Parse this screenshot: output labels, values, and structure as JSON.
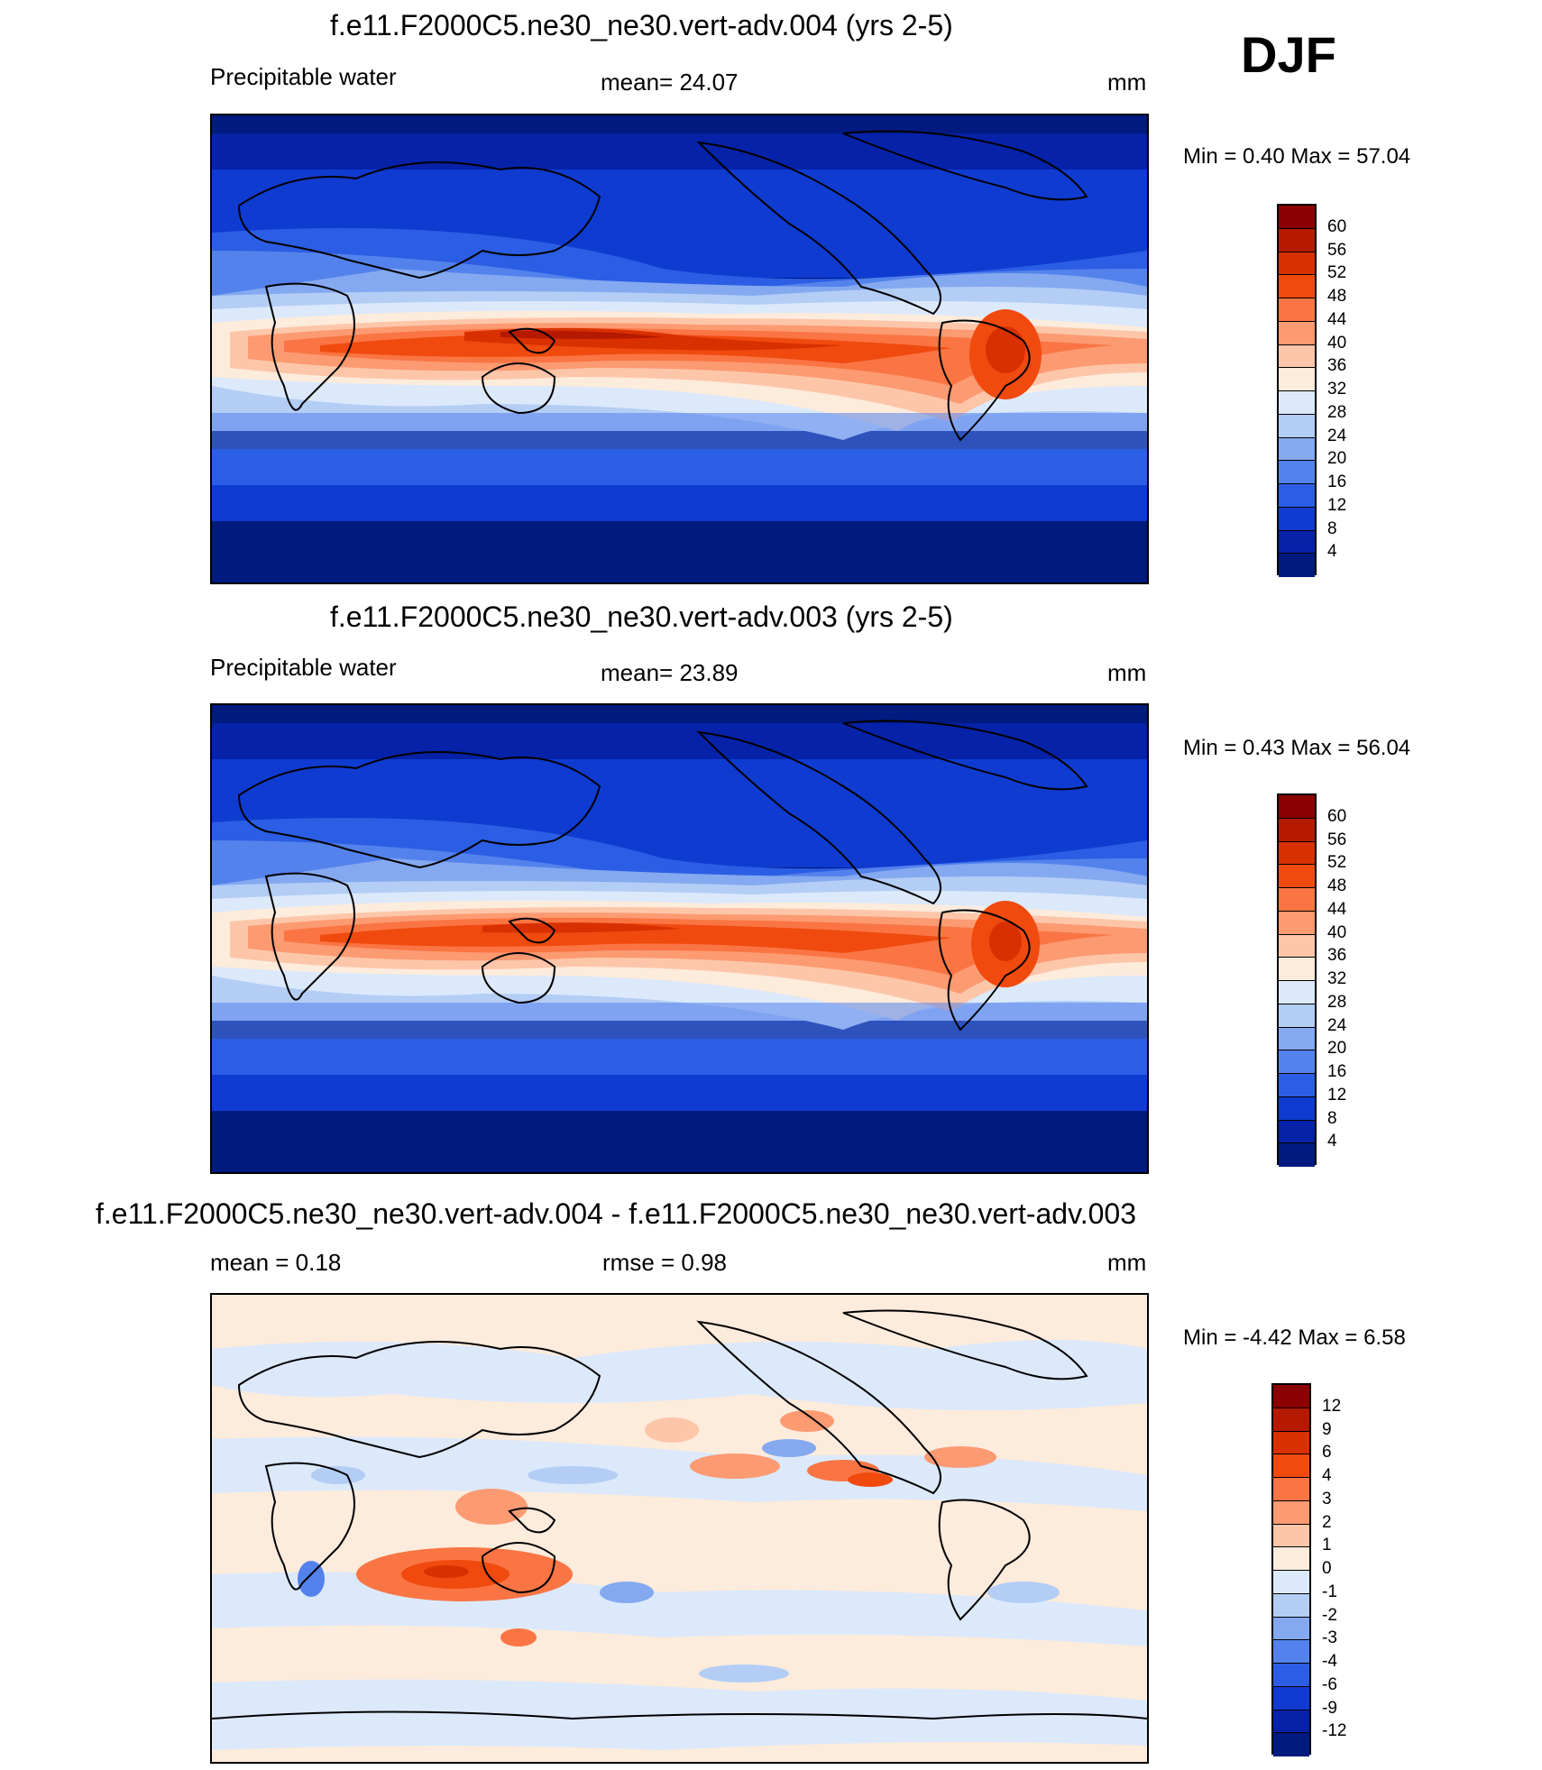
{
  "season": "DJF",
  "panels": [
    {
      "title": "f.e11.F2000C5.ne30_ne30.vert-adv.004 (yrs 2-5)",
      "left_label": "Precipitable water",
      "center_label": "mean=  24.07",
      "units": "mm",
      "minmax": "Min =    0.40 Max =  57.04",
      "levels": [
        "60",
        "56",
        "52",
        "48",
        "44",
        "40",
        "36",
        "32",
        "28",
        "24",
        "20",
        "16",
        "12",
        "8",
        "4"
      ],
      "colors": [
        "#8b0000",
        "#b51a00",
        "#d93000",
        "#f04a0f",
        "#fa7543",
        "#fc9a72",
        "#fdc6a9",
        "#fdebdc",
        "#dbe9fb",
        "#b3cdf5",
        "#84a9f0",
        "#5482ec",
        "#2b5ee4",
        "#0f3bd1",
        "#0522a8",
        "#001a80"
      ]
    },
    {
      "title": "f.e11.F2000C5.ne30_ne30.vert-adv.003 (yrs 2-5)",
      "left_label": "Precipitable water",
      "center_label": "mean=  23.89",
      "units": "mm",
      "minmax": "Min =    0.43 Max =  56.04",
      "levels": [
        "60",
        "56",
        "52",
        "48",
        "44",
        "40",
        "36",
        "32",
        "28",
        "24",
        "20",
        "16",
        "12",
        "8",
        "4"
      ],
      "colors": [
        "#8b0000",
        "#b51a00",
        "#d93000",
        "#f04a0f",
        "#fa7543",
        "#fc9a72",
        "#fdc6a9",
        "#fdebdc",
        "#dbe9fb",
        "#b3cdf5",
        "#84a9f0",
        "#5482ec",
        "#2b5ee4",
        "#0f3bd1",
        "#0522a8",
        "#001a80"
      ]
    },
    {
      "title": "f.e11.F2000C5.ne30_ne30.vert-adv.004 - f.e11.F2000C5.ne30_ne30.vert-adv.003",
      "left_label": "mean =   0.18",
      "center_label": "rmse =   0.98",
      "units": "mm",
      "minmax": "Min =  -4.42 Max =   6.58",
      "levels": [
        "12",
        "9",
        "6",
        "4",
        "3",
        "2",
        "1",
        "0",
        "-1",
        "-2",
        "-3",
        "-4",
        "-6",
        "-9",
        "-12"
      ],
      "colors": [
        "#8b0000",
        "#b51a00",
        "#d93000",
        "#f04a0f",
        "#fa7543",
        "#fc9a72",
        "#fdc6a9",
        "#fdebdc",
        "#dbe9fb",
        "#b3cdf5",
        "#84a9f0",
        "#5482ec",
        "#2b5ee4",
        "#0f3bd1",
        "#0522a8",
        "#001a80"
      ]
    }
  ]
}
